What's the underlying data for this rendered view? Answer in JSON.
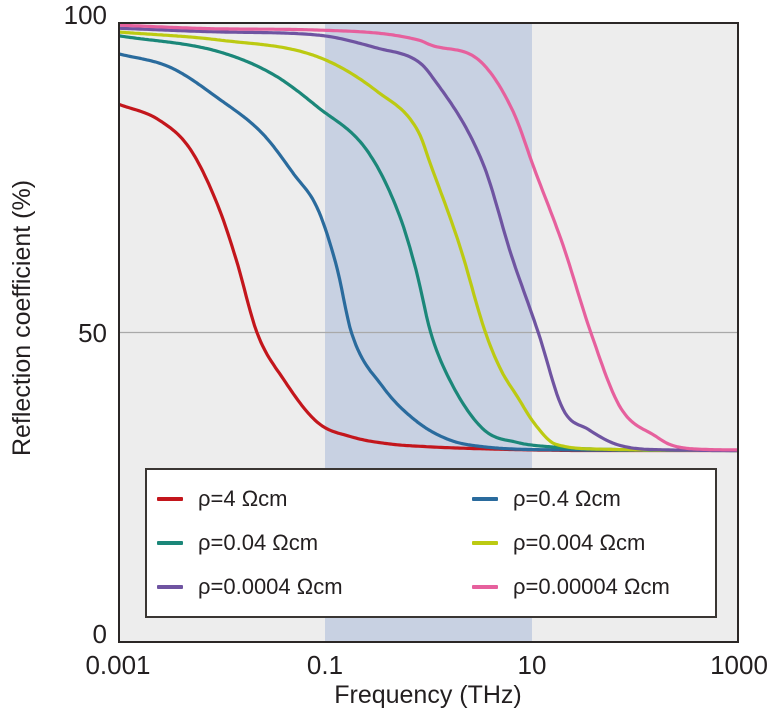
{
  "chart_data": {
    "type": "line",
    "title": "",
    "xlabel": "Frequency (THz)",
    "ylabel": "Reflection coefficient (%)",
    "x_scale": "log",
    "xlim": [
      0.001,
      1000
    ],
    "ylim": [
      0,
      100
    ],
    "xticks": {
      "values": [
        0.001,
        0.1,
        10,
        1000
      ],
      "labels": [
        "0.001",
        "0.1",
        "10",
        "1000"
      ]
    },
    "yticks": {
      "values": [
        0,
        50,
        100
      ],
      "labels": [
        "0",
        "50",
        "100"
      ]
    },
    "grid_y": [
      50
    ],
    "units": {
      "x": "THz",
      "y": "%"
    },
    "plot_background": "#ededed",
    "highlight_band": {
      "from_thz": 0.1,
      "to_thz": 10,
      "color": "#c8d1e2"
    },
    "axis_color": "#2b2726",
    "gridline_color": "#a9a9a9",
    "text_color": "#231f20",
    "legend": {
      "position": "lower center",
      "columns": 2
    },
    "series": [
      {
        "label": "ρ=4 Ωcm",
        "color": "#c3161c",
        "points": [
          [
            0.001,
            86.8
          ],
          [
            0.0025,
            84.2
          ],
          [
            0.005,
            79.5
          ],
          [
            0.0095,
            69.9
          ],
          [
            0.014,
            61.5
          ],
          [
            0.022,
            50
          ],
          [
            0.04,
            42.4
          ],
          [
            0.085,
            35.5
          ],
          [
            0.18,
            33.2
          ],
          [
            0.4,
            32.1
          ],
          [
            1,
            31.6
          ],
          [
            5,
            31.2
          ],
          [
            32,
            31
          ],
          [
            1000,
            31
          ]
        ]
      },
      {
        "label": "ρ=0.4 Ωcm",
        "color": "#2a6b9d",
        "points": [
          [
            0.001,
            94.9
          ],
          [
            0.0032,
            92.7
          ],
          [
            0.0095,
            87.6
          ],
          [
            0.025,
            82
          ],
          [
            0.05,
            75.5
          ],
          [
            0.085,
            69.9
          ],
          [
            0.13,
            60.5
          ],
          [
            0.18,
            50
          ],
          [
            0.36,
            41.3
          ],
          [
            0.78,
            35.6
          ],
          [
            1.6,
            32.7
          ],
          [
            3.4,
            31.6
          ],
          [
            20,
            31.1
          ],
          [
            1000,
            31
          ]
        ]
      },
      {
        "label": "ρ=0.04 Ωcm",
        "color": "#1b8779",
        "points": [
          [
            0.001,
            97.8
          ],
          [
            0.0095,
            95.2
          ],
          [
            0.032,
            91.5
          ],
          [
            0.085,
            86.3
          ],
          [
            0.26,
            79.1
          ],
          [
            0.52,
            69
          ],
          [
            0.76,
            60
          ],
          [
            1.05,
            50
          ],
          [
            1.6,
            42.4
          ],
          [
            3.4,
            34.4
          ],
          [
            7.2,
            32.3
          ],
          [
            15,
            31.6
          ],
          [
            100,
            31.1
          ],
          [
            1000,
            31
          ]
        ]
      },
      {
        "label": "ρ=0.004 Ωcm",
        "color": "#bcca12",
        "points": [
          [
            0.001,
            98.4
          ],
          [
            0.0095,
            97.1
          ],
          [
            0.085,
            94.4
          ],
          [
            0.32,
            88.8
          ],
          [
            0.8,
            82.3
          ],
          [
            1.05,
            77
          ],
          [
            2,
            64
          ],
          [
            3.55,
            50
          ],
          [
            5,
            44
          ],
          [
            7.2,
            39.7
          ],
          [
            10.5,
            35.4
          ],
          [
            17,
            32
          ],
          [
            50,
            31.2
          ],
          [
            1000,
            31
          ]
        ]
      },
      {
        "label": "ρ=0.0004 Ωcm",
        "color": "#6f54a1",
        "points": [
          [
            0.001,
            99
          ],
          [
            0.0095,
            98.4
          ],
          [
            0.085,
            97.9
          ],
          [
            0.32,
            95.8
          ],
          [
            0.8,
            93.6
          ],
          [
            1.05,
            91.5
          ],
          [
            3.4,
            77
          ],
          [
            6.3,
            62.5
          ],
          [
            11.5,
            50
          ],
          [
            20,
            37.6
          ],
          [
            35,
            34.4
          ],
          [
            68,
            31.9
          ],
          [
            200,
            31.1
          ],
          [
            1000,
            31
          ]
        ]
      },
      {
        "label": "ρ=0.00004 Ωcm",
        "color": "#e6609d",
        "points": [
          [
            0.001,
            99.5
          ],
          [
            0.0095,
            98.9
          ],
          [
            0.085,
            98.7
          ],
          [
            0.8,
            97.1
          ],
          [
            1.05,
            96.3
          ],
          [
            3.2,
            93.6
          ],
          [
            6.6,
            85.5
          ],
          [
            10.5,
            76.4
          ],
          [
            20,
            64
          ],
          [
            37,
            50
          ],
          [
            71,
            38
          ],
          [
            160,
            33.2
          ],
          [
            220,
            31.9
          ],
          [
            430,
            31.2
          ],
          [
            1000,
            31.1
          ]
        ]
      }
    ]
  }
}
